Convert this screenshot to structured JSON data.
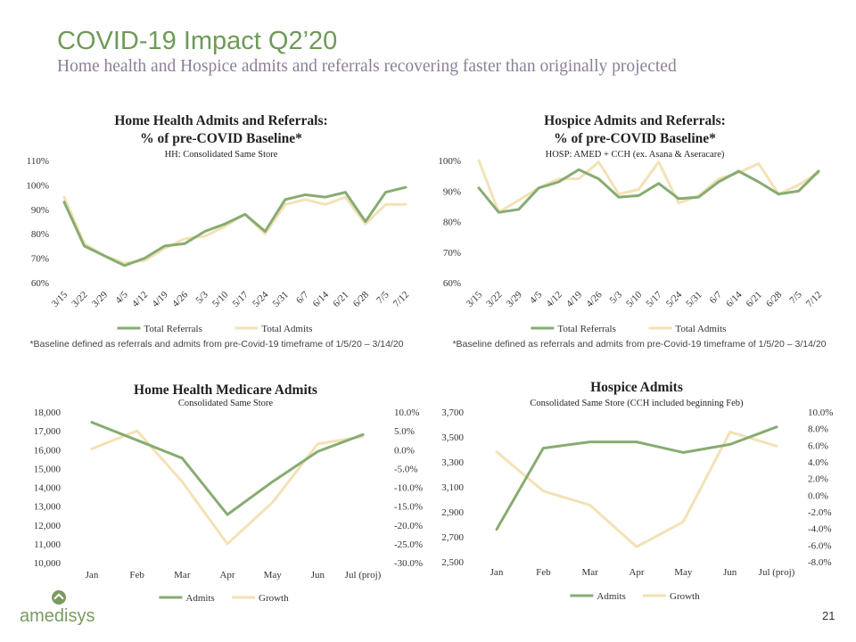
{
  "slide": {
    "title": "COVID-19 Impact Q2’20",
    "subtitle": "Home health and Hospice admits and referrals recovering faster than originally projected",
    "footnote_left": "*Baseline defined as referrals and admits from pre-Covid-19 timeframe of 1/5/20 – 3/14/20",
    "footnote_right": "*Baseline defined as referrals and admits from pre-Covid-19 timeframe of 1/5/20 – 3/14/20",
    "logo_text": "amedisys",
    "page_number": "21"
  },
  "colors": {
    "referrals": "#87ac72",
    "admits": "#f3e2b6",
    "title_green": "#6f9a57",
    "subtitle_purple": "#8c7f98"
  },
  "chart_data": [
    {
      "type": "line",
      "title": "Home Health Admits and Referrals:",
      "title_line2": "% of pre-COVID Baseline*",
      "subtitle": "HH: Consolidated Same Store",
      "x": [
        "3/15",
        "3/22",
        "3/29",
        "4/5",
        "4/12",
        "4/19",
        "4/26",
        "5/3",
        "5/10",
        "5/17",
        "5/24",
        "5/31",
        "6/7",
        "6/14",
        "6/21",
        "6/28",
        "7/5",
        "7/12"
      ],
      "y_ticks": [
        "60%",
        "70%",
        "80%",
        "90%",
        "100%",
        "110%"
      ],
      "ylim": [
        60,
        110
      ],
      "series": [
        {
          "name": "Total Referrals",
          "color": "#87ac72",
          "values": [
            93,
            75,
            71,
            67,
            70,
            75,
            76,
            81,
            84,
            88,
            81,
            94,
            96,
            95,
            97,
            85,
            97,
            99
          ]
        },
        {
          "name": "Total Admits",
          "color": "#f3e2b6",
          "values": [
            95,
            76,
            71,
            68,
            69,
            74,
            78,
            79,
            83,
            88,
            80,
            92,
            94,
            92,
            95,
            84,
            92,
            92
          ]
        }
      ],
      "legend": "bottom"
    },
    {
      "type": "line",
      "title": "Hospice Admits and Referrals:",
      "title_line2": "% of pre-COVID Baseline*",
      "subtitle": "HOSP: AMED + CCH (ex. Asana & Aseracare)",
      "x": [
        "3/15",
        "3/22",
        "3/29",
        "4/5",
        "4/12",
        "4/19",
        "4/26",
        "5/3",
        "5/10",
        "5/17",
        "5/24",
        "5/31",
        "6/7",
        "6/14",
        "6/21",
        "6/28",
        "7/5",
        "7/12"
      ],
      "y_ticks": [
        "60%",
        "70%",
        "80%",
        "90%",
        "100%"
      ],
      "ylim": [
        60,
        100
      ],
      "series": [
        {
          "name": "Total Referrals",
          "color": "#87ac72",
          "values": [
            91,
            83,
            84,
            91,
            93,
            97,
            94,
            88,
            88.5,
            92.5,
            87.5,
            88,
            93,
            96.5,
            93,
            89,
            90,
            96.5
          ]
        },
        {
          "name": "Total Admits",
          "color": "#f3e2b6",
          "values": [
            100,
            83,
            87,
            91,
            94,
            94,
            99.5,
            89,
            90.5,
            99.5,
            86,
            88.5,
            94,
            96,
            99,
            89,
            92,
            96
          ]
        }
      ],
      "legend": "bottom"
    },
    {
      "type": "line",
      "title": "Home Health Medicare Admits",
      "subtitle": "Consolidated Same Store",
      "x": [
        "Jan",
        "Feb",
        "Mar",
        "Apr",
        "May",
        "Jun",
        "Jul (proj)"
      ],
      "y_ticks": [
        "10,000",
        "11,000",
        "12,000",
        "13,000",
        "14,000",
        "15,000",
        "16,000",
        "17,000",
        "18,000"
      ],
      "y2_ticks": [
        "-30.0%",
        "-25.0%",
        "-20.0%",
        "-15.0%",
        "-10.0%",
        "-5.0%",
        "0.0%",
        "5.0%",
        "10.0%"
      ],
      "ylim": [
        10000,
        18000
      ],
      "y2lim": [
        -30,
        10
      ],
      "series": [
        {
          "name": "Admits",
          "axis": "left",
          "color": "#87ac72",
          "values": [
            17450,
            16500,
            15550,
            12550,
            14300,
            15900,
            16800
          ]
        },
        {
          "name": "Growth",
          "axis": "right",
          "color": "#f3e2b6",
          "values": [
            0.2,
            5.0,
            -8.5,
            -25.0,
            -14.0,
            1.5,
            3.5
          ]
        }
      ],
      "legend": "bottom"
    },
    {
      "type": "line",
      "title": "Hospice Admits",
      "subtitle": "Consolidated Same Store (CCH included beginning Feb)",
      "x": [
        "Jan",
        "Feb",
        "Mar",
        "Apr",
        "May",
        "Jun",
        "Jul (proj)"
      ],
      "y_ticks": [
        "2,500",
        "2,700",
        "2,900",
        "3,100",
        "3,300",
        "3,500",
        "3,700"
      ],
      "y2_ticks": [
        "-8.0%",
        "-6.0%",
        "-4.0%",
        "-2.0%",
        "0.0%",
        "2.0%",
        "4.0%",
        "6.0%",
        "8.0%",
        "10.0%"
      ],
      "ylim": [
        2500,
        3700
      ],
      "y2lim": [
        -8,
        10
      ],
      "series": [
        {
          "name": "Admits",
          "axis": "left",
          "color": "#87ac72",
          "values": [
            2760,
            3410,
            3460,
            3460,
            3375,
            3440,
            3580
          ]
        },
        {
          "name": "Growth",
          "axis": "right",
          "color": "#f3e2b6",
          "values": [
            5.2,
            0.5,
            -1.2,
            -6.2,
            -3.2,
            7.6,
            5.9
          ]
        }
      ],
      "legend": "bottom"
    }
  ]
}
